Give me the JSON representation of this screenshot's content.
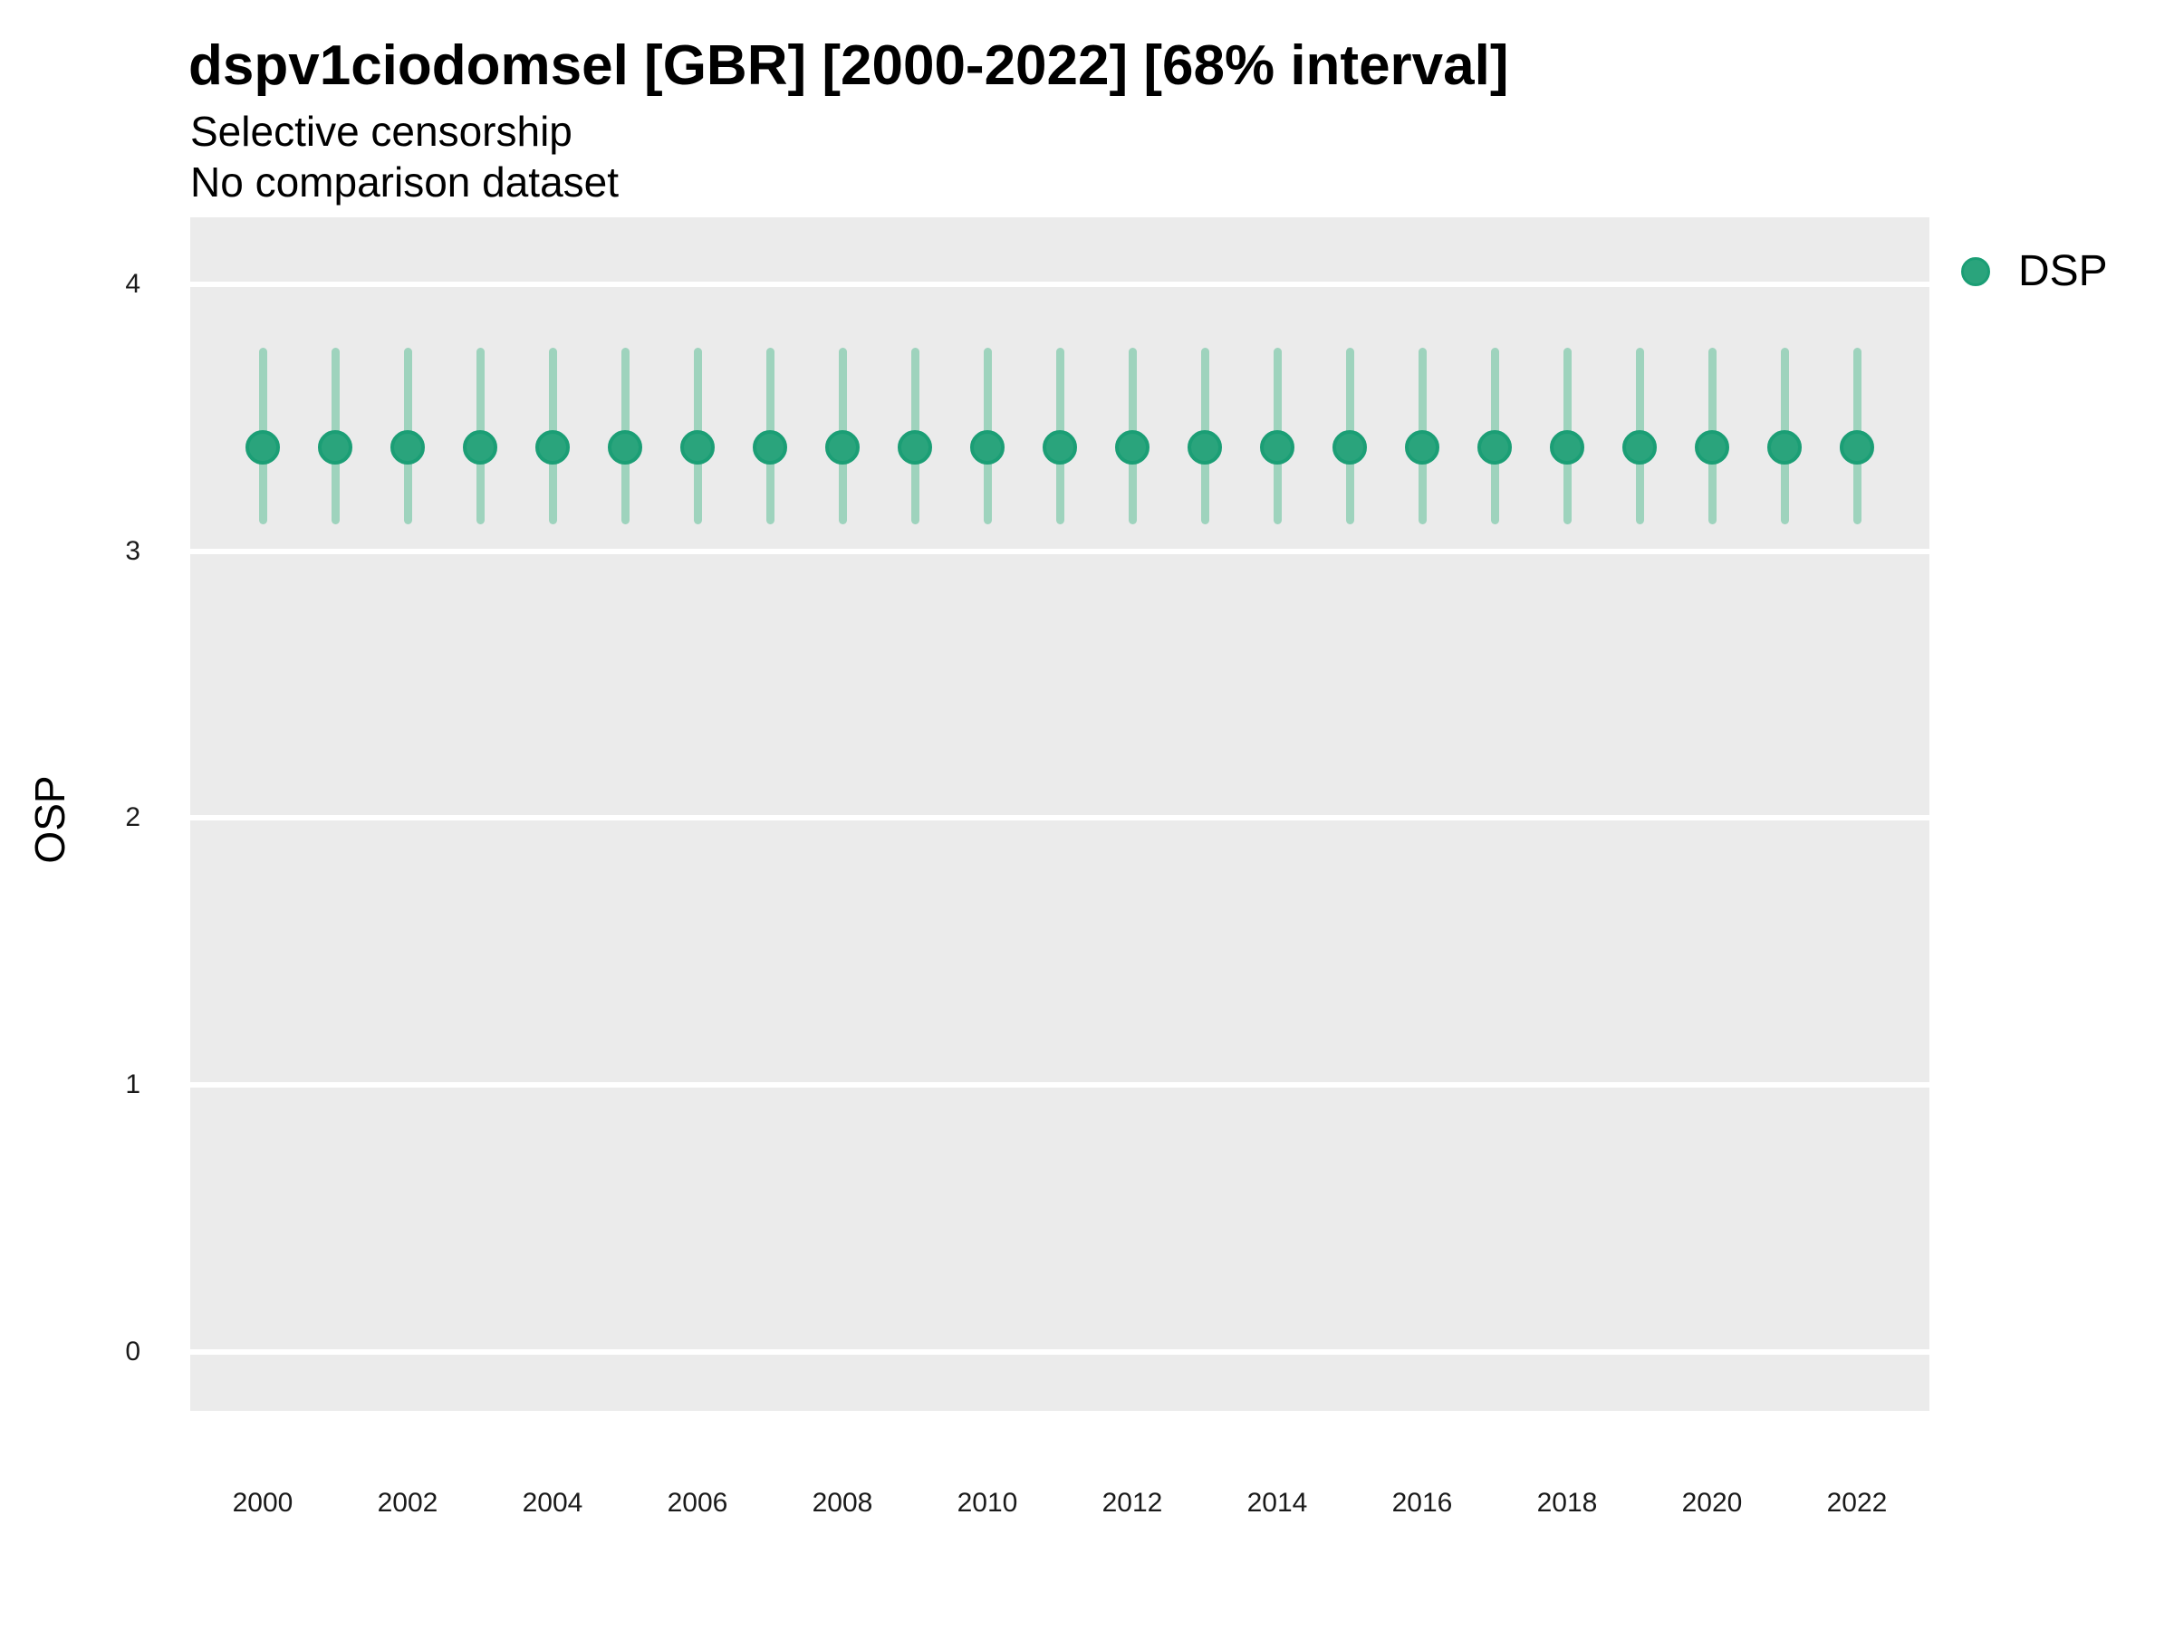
{
  "figure": {
    "title": "dspv1ciodomsel [GBR] [2000-2022] [68% interval]",
    "subtitle1": "Selective censorship",
    "subtitle2": "No comparison dataset"
  },
  "legend": {
    "label": "DSP"
  },
  "colors": {
    "point_fill": "#2aa47c",
    "point_ring": "#1b9e75",
    "interval": "#9ed3bd",
    "panel_bg": "#ebebeb",
    "grid": "#ffffff",
    "tick_text": "#1a1a1a",
    "text": "#000000"
  },
  "chart_data": {
    "type": "pointrange",
    "title": "dspv1ciodomsel [GBR] [2000-2022] [68% interval]",
    "subtitle": [
      "Selective censorship",
      "No comparison dataset"
    ],
    "xlabel": "",
    "ylabel": "OSP",
    "legend_position": "right",
    "grid": "major-horizontal-only",
    "interval_label": "68% interval",
    "x": [
      2000,
      2001,
      2002,
      2003,
      2004,
      2005,
      2006,
      2007,
      2008,
      2009,
      2010,
      2011,
      2012,
      2013,
      2014,
      2015,
      2016,
      2017,
      2018,
      2019,
      2020,
      2021,
      2022
    ],
    "series": [
      {
        "name": "DSP",
        "estimate": [
          3.39,
          3.39,
          3.39,
          3.39,
          3.39,
          3.39,
          3.39,
          3.39,
          3.39,
          3.39,
          3.39,
          3.39,
          3.39,
          3.39,
          3.39,
          3.39,
          3.39,
          3.39,
          3.39,
          3.39,
          3.39,
          3.39,
          3.39
        ],
        "low": [
          3.1,
          3.1,
          3.1,
          3.1,
          3.1,
          3.1,
          3.1,
          3.1,
          3.1,
          3.1,
          3.1,
          3.1,
          3.1,
          3.1,
          3.1,
          3.1,
          3.1,
          3.1,
          3.1,
          3.1,
          3.1,
          3.1,
          3.1
        ],
        "high": [
          3.76,
          3.76,
          3.76,
          3.76,
          3.76,
          3.76,
          3.76,
          3.76,
          3.76,
          3.76,
          3.76,
          3.76,
          3.76,
          3.76,
          3.76,
          3.76,
          3.76,
          3.76,
          3.76,
          3.76,
          3.76,
          3.76,
          3.76
        ]
      }
    ],
    "x_ticks": [
      2000,
      2002,
      2004,
      2006,
      2008,
      2010,
      2012,
      2014,
      2016,
      2018,
      2020,
      2022
    ],
    "y_ticks": [
      0,
      1,
      2,
      3,
      4
    ],
    "xlim": [
      1999,
      2023
    ],
    "ylim": [
      -0.22,
      4.25
    ]
  }
}
